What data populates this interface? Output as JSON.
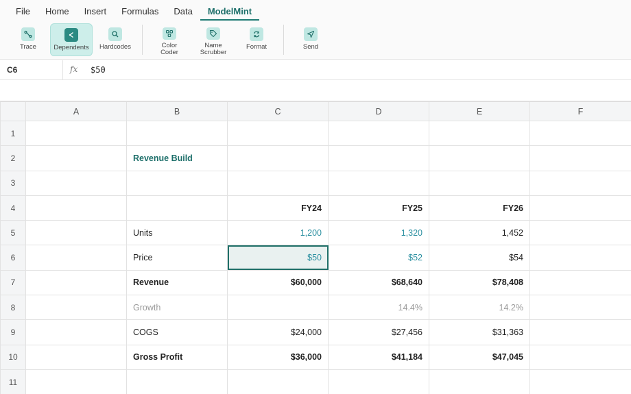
{
  "menu": {
    "tabs": [
      {
        "label": "File"
      },
      {
        "label": "Home"
      },
      {
        "label": "Insert"
      },
      {
        "label": "Formulas"
      },
      {
        "label": "Data"
      },
      {
        "label": "ModelMint"
      }
    ],
    "active_tab": "ModelMint"
  },
  "ribbon": {
    "buttons": [
      {
        "label": "Trace",
        "icon": "trace-icon"
      },
      {
        "label": "Dependents",
        "icon": "dependents-icon",
        "active": true
      },
      {
        "label": "Hardcodes",
        "icon": "search-icon"
      },
      {
        "label": "Color\nCoder",
        "icon": "palette-icon"
      },
      {
        "label": "Name\nScrubber",
        "icon": "tag-icon"
      },
      {
        "label": "Format",
        "icon": "refresh-icon"
      },
      {
        "label": "Send",
        "icon": "send-icon"
      }
    ]
  },
  "formula_bar": {
    "cell_ref": "C6",
    "fx_label": "fx",
    "value": "$50"
  },
  "grid": {
    "columns": [
      "A",
      "B",
      "C",
      "D",
      "E",
      "F"
    ],
    "rows": [
      {
        "n": "1",
        "B": "",
        "C": "",
        "D": "",
        "E": ""
      },
      {
        "n": "2",
        "B": "Revenue Build",
        "C": "",
        "D": "",
        "E": ""
      },
      {
        "n": "3",
        "B": "",
        "C": "",
        "D": "",
        "E": ""
      },
      {
        "n": "4",
        "B": "",
        "C": "FY24",
        "D": "FY25",
        "E": "FY26"
      },
      {
        "n": "5",
        "B": "Units",
        "C": "1,200",
        "D": "1,320",
        "E": "1,452"
      },
      {
        "n": "6",
        "B": "Price",
        "C": "$50",
        "D": "$52",
        "E": "$54"
      },
      {
        "n": "7",
        "B": "Revenue",
        "C": "$60,000",
        "D": "$68,640",
        "E": "$78,408"
      },
      {
        "n": "8",
        "B": "Growth",
        "C": "",
        "D": "14.4%",
        "E": "14.2%"
      },
      {
        "n": "9",
        "B": "COGS",
        "C": "$24,000",
        "D": "$27,456",
        "E": "$31,363"
      },
      {
        "n": "10",
        "B": "Gross Profit",
        "C": "$36,000",
        "D": "$41,184",
        "E": "$47,045"
      },
      {
        "n": "11",
        "B": "",
        "C": "",
        "D": "",
        "E": ""
      }
    ],
    "selected_cell": "C6"
  },
  "colors": {
    "accent": "#1f7a73",
    "input_blue": "#2a8fa0",
    "muted": "#9a9a9a"
  }
}
